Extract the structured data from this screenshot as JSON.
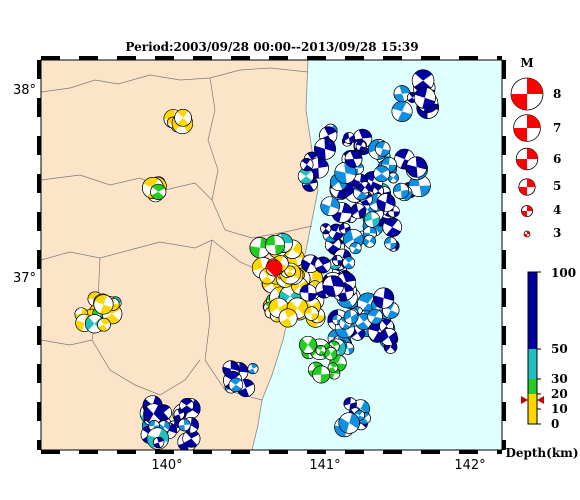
{
  "title": "Period:2003/09/28 00:00--2013/09/28 15:39",
  "lat_labels": [
    "38°",
    "37°"
  ],
  "lon_labels": [
    "140°",
    "141°",
    "142°"
  ],
  "magnitude_legend": {
    "header": "M",
    "labels": [
      "8",
      "7",
      "6",
      "5",
      "4",
      "3"
    ],
    "values": [
      8,
      7,
      6,
      5,
      4,
      3
    ],
    "color": "#ff0000"
  },
  "depth_scale": {
    "title": "Depth(km)",
    "tick_labels": [
      "100",
      "50",
      "30",
      "20",
      "10",
      "0"
    ],
    "tick_values": [
      100,
      50,
      30,
      20,
      10,
      0
    ],
    "bands": [
      {
        "from": 0,
        "to": 10,
        "color": "#ffd700"
      },
      {
        "from": 10,
        "to": 20,
        "color": "#ffd700"
      },
      {
        "from": 20,
        "to": 30,
        "color": "#22cc22"
      },
      {
        "from": 30,
        "to": 50,
        "color": "#20c0c0"
      },
      {
        "from": 50,
        "to": 100,
        "color": "#1090e0"
      },
      {
        "from": 100,
        "to": 100,
        "color": "#0000a0"
      }
    ],
    "marker_depth": 16,
    "marker_color": "#cc0000"
  },
  "colors": {
    "land": "#fbe4c8",
    "sea": "#e0ffff",
    "border": "#000000",
    "deep": "#0000a0",
    "mid": "#1090e0",
    "shallow": "#ffd700",
    "green": "#22cc22",
    "cyan": "#20c0c0",
    "target": "#ff0000"
  },
  "map_bounds": {
    "lon_min": 139.0,
    "lon_max": 142.2,
    "lat_min": 36.0,
    "lat_max": 38.15
  },
  "mechanism_clusters": [
    {
      "lon": 140.75,
      "lat": 36.85,
      "spread": 0.17,
      "n": 55,
      "depth": "shallow"
    },
    {
      "lon": 140.65,
      "lat": 37.05,
      "spread": 0.13,
      "n": 18,
      "depth": "shallow"
    },
    {
      "lon": 141.2,
      "lat": 37.3,
      "spread": 0.25,
      "n": 45,
      "depth": "deep"
    },
    {
      "lon": 141.25,
      "lat": 36.7,
      "spread": 0.2,
      "n": 40,
      "depth": "mid"
    },
    {
      "lon": 141.05,
      "lat": 37.6,
      "spread": 0.22,
      "n": 22,
      "depth": "deep"
    },
    {
      "lon": 141.5,
      "lat": 37.55,
      "spread": 0.18,
      "n": 15,
      "depth": "mid"
    },
    {
      "lon": 141.0,
      "lat": 36.95,
      "spread": 0.15,
      "n": 20,
      "depth": "deep"
    },
    {
      "lon": 139.9,
      "lat": 36.15,
      "spread": 0.15,
      "n": 22,
      "depth": "deep"
    },
    {
      "lon": 140.4,
      "lat": 36.4,
      "spread": 0.12,
      "n": 8,
      "depth": "deep"
    },
    {
      "lon": 141.15,
      "lat": 36.2,
      "spread": 0.1,
      "n": 10,
      "depth": "mid"
    },
    {
      "lon": 139.4,
      "lat": 36.75,
      "spread": 0.12,
      "n": 16,
      "depth": "shallow"
    },
    {
      "lon": 139.95,
      "lat": 37.8,
      "spread": 0.05,
      "n": 6,
      "depth": "shallow"
    },
    {
      "lon": 139.75,
      "lat": 37.45,
      "spread": 0.07,
      "n": 5,
      "depth": "shallow"
    },
    {
      "lon": 141.6,
      "lat": 37.95,
      "spread": 0.12,
      "n": 8,
      "depth": "deep"
    },
    {
      "lon": 140.95,
      "lat": 36.5,
      "spread": 0.12,
      "n": 12,
      "depth": "green"
    }
  ]
}
